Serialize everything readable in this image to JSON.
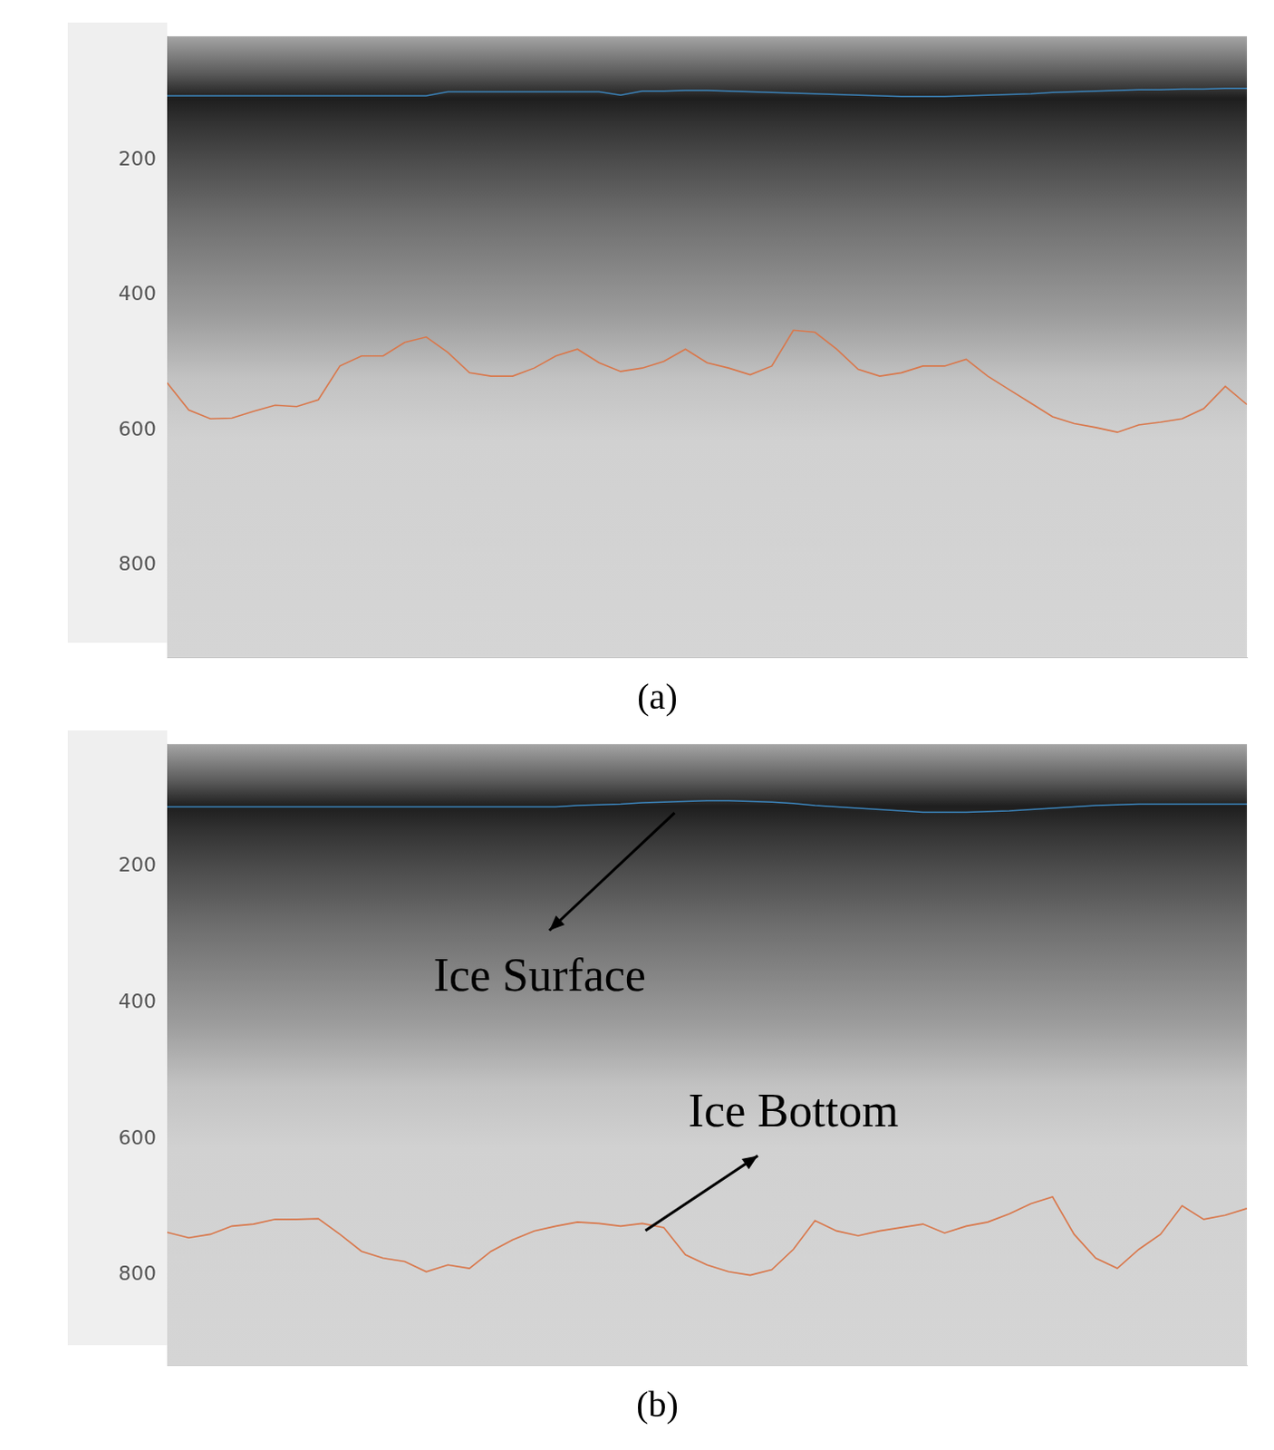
{
  "chart_data": [
    {
      "type": "line",
      "title": "(a)",
      "tick_labels": "y",
      "grid": false,
      "x": [
        0,
        2,
        4,
        6,
        8,
        10,
        12,
        14,
        16,
        18,
        20,
        22,
        24,
        26,
        28,
        30,
        32,
        34,
        36,
        38,
        40,
        42,
        44,
        46,
        48,
        50,
        52,
        54,
        56,
        58,
        60,
        62,
        64,
        66,
        68,
        70,
        72,
        74,
        76,
        78,
        80,
        82,
        84,
        86,
        88,
        90,
        92,
        94,
        96,
        98,
        100
      ],
      "xlim": [
        0,
        100
      ],
      "ylim": [
        936,
        17
      ],
      "yticks": [
        200,
        400,
        600,
        800
      ],
      "series": [
        {
          "color": "#3b82b8",
          "values": [
            105,
            105,
            105,
            105,
            105,
            105,
            105,
            105,
            105,
            105,
            105,
            105,
            105,
            99,
            99,
            99,
            99,
            99,
            99,
            99,
            99,
            104,
            98,
            98,
            97,
            97,
            98,
            99,
            100,
            101,
            102,
            103,
            104,
            105,
            106,
            106,
            106,
            105,
            104,
            103,
            102,
            100,
            99,
            98,
            97,
            96,
            96,
            95,
            95,
            94,
            94
          ]
        },
        {
          "color": "#d9784c",
          "values": [
            530,
            570,
            583,
            582,
            572,
            563,
            565,
            555,
            505,
            490,
            490,
            470,
            462,
            485,
            515,
            520,
            520,
            508,
            490,
            480,
            500,
            513,
            508,
            498,
            480,
            500,
            508,
            518,
            505,
            452,
            455,
            480,
            510,
            520,
            515,
            505,
            505,
            495,
            520,
            540,
            560,
            580,
            590,
            596,
            603,
            592,
            588,
            583,
            568,
            535,
            562
          ]
        }
      ]
    },
    {
      "type": "line",
      "title": "(b)",
      "tick_labels": "y",
      "grid": false,
      "annotations": [
        "Ice Surface",
        "Ice Bottom"
      ],
      "x": [
        0,
        2,
        4,
        6,
        8,
        10,
        12,
        14,
        16,
        18,
        20,
        22,
        24,
        26,
        28,
        30,
        32,
        34,
        36,
        38,
        40,
        42,
        44,
        46,
        48,
        50,
        52,
        54,
        56,
        58,
        60,
        62,
        64,
        66,
        68,
        70,
        72,
        74,
        76,
        78,
        80,
        82,
        84,
        86,
        88,
        90,
        92,
        94,
        96,
        98,
        100
      ],
      "xlim": [
        0,
        100
      ],
      "ylim": [
        932,
        20
      ],
      "yticks": [
        200,
        400,
        600,
        800
      ],
      "series": [
        {
          "color": "#3b82b8",
          "values": [
            112,
            112,
            112,
            112,
            112,
            112,
            112,
            112,
            112,
            112,
            112,
            112,
            112,
            112,
            112,
            112,
            112,
            112,
            112,
            110,
            109,
            108,
            106,
            105,
            104,
            103,
            103,
            104,
            105,
            107,
            110,
            112,
            114,
            116,
            118,
            120,
            120,
            120,
            119,
            118,
            116,
            114,
            112,
            110,
            109,
            108,
            108,
            108,
            108,
            108,
            108
          ]
        },
        {
          "color": "#d9784c",
          "values": [
            737,
            745,
            740,
            728,
            725,
            718,
            718,
            717,
            740,
            765,
            775,
            780,
            795,
            785,
            790,
            765,
            748,
            735,
            728,
            722,
            724,
            728,
            724,
            730,
            770,
            785,
            795,
            800,
            792,
            762,
            720,
            735,
            742,
            735,
            730,
            725,
            738,
            728,
            722,
            710,
            695,
            685,
            740,
            775,
            790,
            762,
            740,
            698,
            718,
            712,
            702
          ]
        }
      ]
    }
  ]
}
